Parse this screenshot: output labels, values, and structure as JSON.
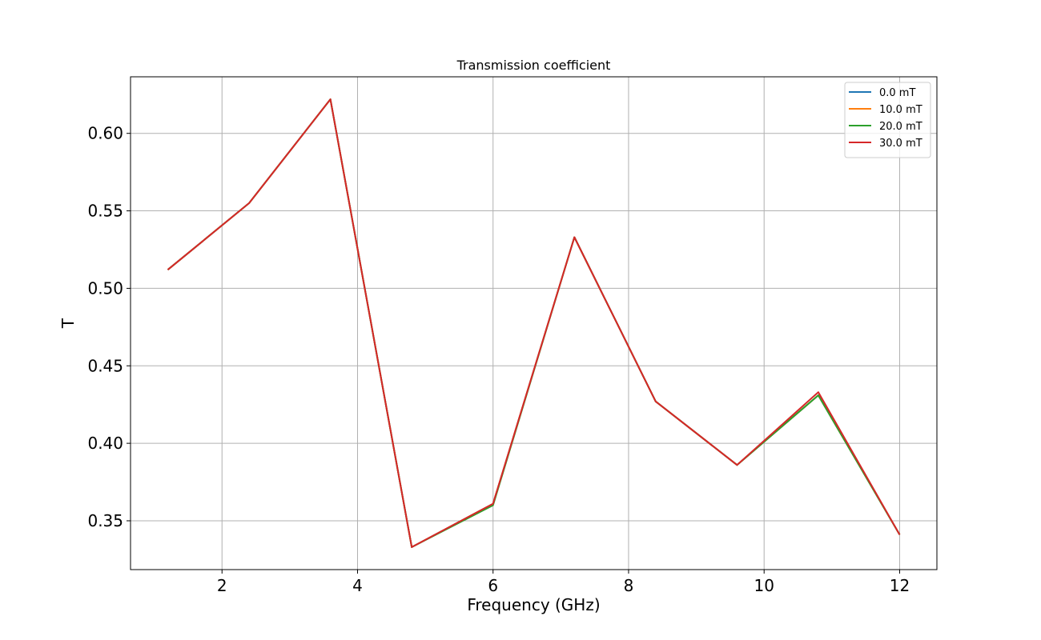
{
  "chart_data": {
    "type": "line",
    "title": "Transmission coefficient",
    "xlabel": "Frequency (GHz)",
    "ylabel": "T",
    "xlim": [
      0.65,
      12.55
    ],
    "ylim": [
      0.3185,
      0.6365
    ],
    "xticks": [
      2,
      4,
      6,
      8,
      10,
      12
    ],
    "yticks": [
      0.35,
      0.4,
      0.45,
      0.5,
      0.55,
      0.6
    ],
    "ytick_labels": [
      "0.35",
      "0.40",
      "0.45",
      "0.50",
      "0.55",
      "0.60"
    ],
    "grid": true,
    "legend_position": "top-right",
    "x": [
      1.2,
      2.4,
      3.6,
      4.8,
      6.0,
      7.2,
      8.4,
      9.6,
      10.8,
      12.0
    ],
    "series": [
      {
        "name": "0.0 mT",
        "color": "#1f77b4",
        "values": [
          0.512,
          0.555,
          0.622,
          0.333,
          0.361,
          0.533,
          0.427,
          0.386,
          0.431,
          0.341
        ]
      },
      {
        "name": "10.0 mT",
        "color": "#ff7f0e",
        "values": [
          0.512,
          0.555,
          0.622,
          0.333,
          0.361,
          0.533,
          0.427,
          0.386,
          0.431,
          0.341
        ]
      },
      {
        "name": "20.0 mT",
        "color": "#2ca02c",
        "values": [
          0.512,
          0.555,
          0.622,
          0.333,
          0.36,
          0.533,
          0.427,
          0.386,
          0.431,
          0.341
        ]
      },
      {
        "name": "30.0 mT",
        "color": "#d62728",
        "values": [
          0.512,
          0.555,
          0.622,
          0.333,
          0.361,
          0.533,
          0.427,
          0.386,
          0.433,
          0.341
        ]
      }
    ]
  }
}
